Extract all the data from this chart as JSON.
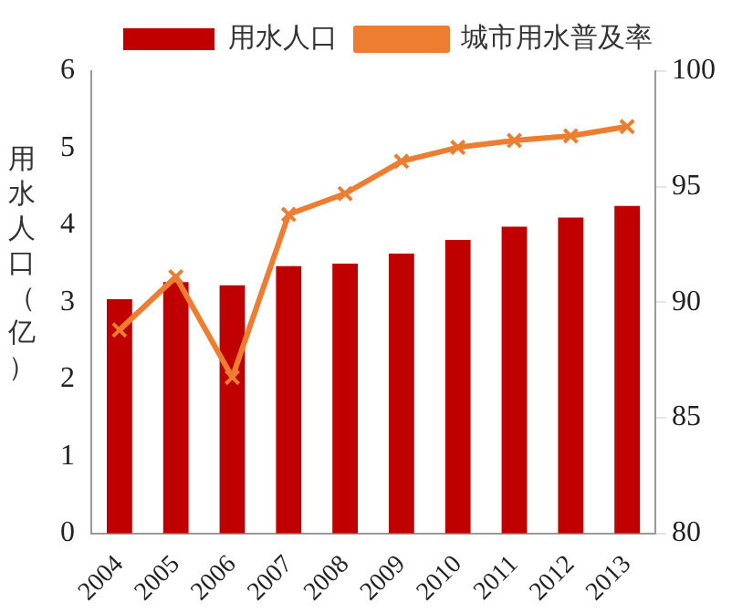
{
  "chart_data": {
    "type": "bar",
    "ylabel": "用水人口（亿）",
    "categories": [
      "2004",
      "2005",
      "2006",
      "2007",
      "2008",
      "2009",
      "2010",
      "2011",
      "2012",
      "2013"
    ],
    "series": [
      {
        "name": "用水人口",
        "color": "#c00000",
        "values": [
          3.04,
          3.26,
          3.22,
          3.47,
          3.5,
          3.63,
          3.81,
          3.98,
          4.1,
          4.25
        ]
      },
      {
        "name": "城市用水普及率",
        "type": "line",
        "axis": "y2",
        "color": "#ed7d31",
        "marker": "cross",
        "values": [
          88.8,
          91.1,
          86.75,
          93.8,
          94.7,
          96.1,
          96.7,
          97.0,
          97.2,
          97.6
        ]
      }
    ],
    "ylim": [
      0,
      6
    ],
    "yticks": [
      0,
      1,
      2,
      3,
      4,
      5,
      6
    ],
    "y2lim": [
      80,
      100
    ],
    "y2ticks": [
      80,
      85,
      90,
      95,
      100
    ],
    "legend": "top",
    "grid": false
  }
}
